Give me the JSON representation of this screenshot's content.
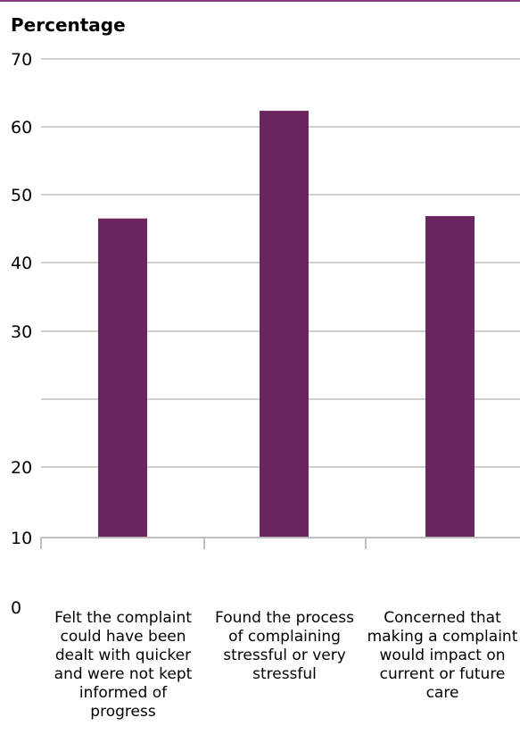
{
  "colors": {
    "bar": "#6b2560",
    "grid": "#bfbfbf",
    "topline": "#8a3d7e"
  },
  "chart_data": {
    "type": "bar",
    "ylabel": "Percentage",
    "categories": [
      "Felt the complaint could have been dealt with quicker and were not kept informed of progress",
      "Found the process of complaining stressful or very stressful",
      "Concerned that making a complaint would impact on current or future care"
    ],
    "values": [
      50,
      63.5,
      50.3
    ],
    "ylim": [
      10,
      70
    ],
    "tick_labels": [
      "70",
      "60",
      "50",
      "40",
      "30",
      "",
      "20",
      "10",
      "0"
    ],
    "grid": true
  }
}
